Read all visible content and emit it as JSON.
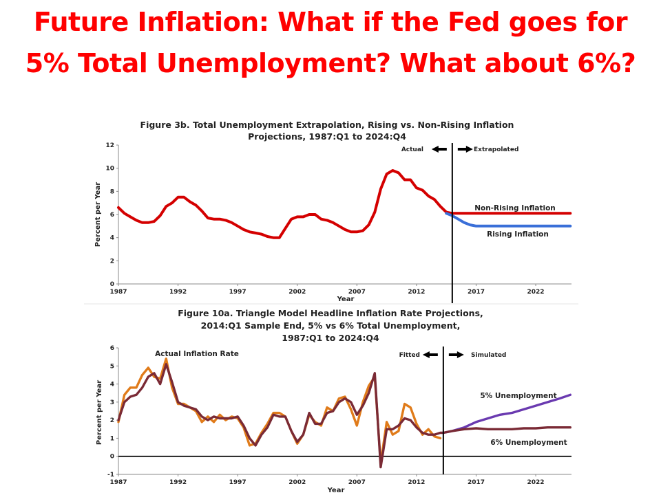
{
  "slide": {
    "title": "Future Inflation: What if the Fed goes for 5% Total Unemployment? What about 6%?"
  },
  "colors": {
    "title": "#ff0000",
    "red_series": "#d40000",
    "blue_series": "#3a6fd8",
    "orange_series": "#e07b1a",
    "maroon_series": "#7a2a35",
    "purple_series": "#6a3ab0"
  },
  "chart_data": [
    {
      "type": "line",
      "title": "Figure 3b. Total Unemployment Extrapolation, Rising vs. Non-Rising Inflation Projections, 1987:Q1 to 2024:Q4",
      "title_lines": [
        "Figure 3b. Total Unemployment Extrapolation, Rising vs. Non-Rising Inflation",
        "Projections, 1987:Q1 to 2024:Q4"
      ],
      "xlabel": "Year",
      "ylabel": "Percent per Year",
      "xlim": [
        1987,
        2025
      ],
      "ylim": [
        0,
        12
      ],
      "x_ticks": [
        "1987",
        "1992",
        "1997",
        "2002",
        "2007",
        "2012",
        "2017",
        "2022"
      ],
      "y_ticks": [
        "0",
        "2",
        "4",
        "6",
        "8",
        "10",
        "12"
      ],
      "divider_x": 2015.0,
      "annotations": {
        "left": "Actual",
        "right": "Extrapolated"
      },
      "series": [
        {
          "name": "Non-Rising Inflation",
          "color": "#d40000",
          "x": [
            1987.0,
            1987.5,
            1988.0,
            1988.5,
            1989.0,
            1989.5,
            1990.0,
            1990.5,
            1991.0,
            1991.5,
            1992.0,
            1992.5,
            1993.0,
            1993.5,
            1994.0,
            1994.5,
            1995.0,
            1995.5,
            1996.0,
            1996.5,
            1997.0,
            1997.5,
            1998.0,
            1998.5,
            1999.0,
            1999.5,
            2000.0,
            2000.5,
            2001.0,
            2001.5,
            2002.0,
            2002.5,
            2003.0,
            2003.5,
            2004.0,
            2004.5,
            2005.0,
            2005.5,
            2006.0,
            2006.5,
            2007.0,
            2007.5,
            2008.0,
            2008.5,
            2009.0,
            2009.5,
            2010.0,
            2010.5,
            2011.0,
            2011.5,
            2012.0,
            2012.5,
            2013.0,
            2013.5,
            2014.0,
            2014.5,
            2015.0,
            2016.0,
            2017.0,
            2018.0,
            2019.0,
            2020.0,
            2021.0,
            2022.0,
            2023.0,
            2024.0,
            2024.9
          ],
          "y": [
            6.6,
            6.1,
            5.8,
            5.5,
            5.3,
            5.3,
            5.4,
            5.9,
            6.7,
            7.0,
            7.5,
            7.5,
            7.1,
            6.8,
            6.3,
            5.7,
            5.6,
            5.6,
            5.5,
            5.3,
            5.0,
            4.7,
            4.5,
            4.4,
            4.3,
            4.1,
            4.0,
            4.0,
            4.8,
            5.6,
            5.8,
            5.8,
            6.0,
            6.0,
            5.6,
            5.5,
            5.3,
            5.0,
            4.7,
            4.5,
            4.5,
            4.6,
            5.1,
            6.2,
            8.2,
            9.5,
            9.8,
            9.6,
            9.0,
            9.0,
            8.3,
            8.1,
            7.6,
            7.3,
            6.7,
            6.2,
            6.1,
            6.1,
            6.1,
            6.1,
            6.1,
            6.1,
            6.1,
            6.1,
            6.1,
            6.1,
            6.1
          ]
        },
        {
          "name": "Rising Inflation",
          "color": "#3a6fd8",
          "x": [
            2014.5,
            2015.0,
            2015.5,
            2016.0,
            2016.5,
            2017.0,
            2018.0,
            2019.0,
            2020.0,
            2021.0,
            2022.0,
            2023.0,
            2024.0,
            2024.9
          ],
          "y": [
            6.1,
            5.9,
            5.6,
            5.3,
            5.1,
            5.0,
            5.0,
            5.0,
            5.0,
            5.0,
            5.0,
            5.0,
            5.0,
            5.0
          ]
        }
      ]
    },
    {
      "type": "line",
      "title": "Figure 10a. Triangle Model Headline Inflation Rate Projections, 2014:Q1 Sample End, 5% vs 6% Total Unemployment, 1987:Q1 to 2024:Q4",
      "title_lines": [
        "Figure 10a. Triangle Model Headline Inflation Rate Projections,",
        "2014:Q1 Sample End, 5% vs 6% Total Unemployment,",
        "1987:Q1 to 2024:Q4"
      ],
      "xlabel": "Year",
      "ylabel": "Percent per Year",
      "xlim": [
        1987,
        2025
      ],
      "ylim": [
        -1,
        6
      ],
      "x_ticks": [
        "1987",
        "1992",
        "1997",
        "2002",
        "2007",
        "2012",
        "2017",
        "2022"
      ],
      "y_ticks": [
        "-1",
        "0",
        "1",
        "2",
        "3",
        "4",
        "5",
        "6"
      ],
      "divider_x": 2014.25,
      "annotations": {
        "left": "Fitted",
        "right": "Simulated",
        "actual": "Actual Inflation Rate"
      },
      "series": [
        {
          "name": "Actual Inflation Rate",
          "color": "#e07b1a",
          "x": [
            1987.0,
            1987.5,
            1988.0,
            1988.5,
            1989.0,
            1989.5,
            1990.0,
            1990.5,
            1991.0,
            1991.5,
            1992.0,
            1992.5,
            1993.0,
            1993.5,
            1994.0,
            1994.5,
            1995.0,
            1995.5,
            1996.0,
            1996.5,
            1997.0,
            1997.5,
            1998.0,
            1998.5,
            1999.0,
            1999.5,
            2000.0,
            2000.5,
            2001.0,
            2001.5,
            2002.0,
            2002.5,
            2003.0,
            2003.5,
            2004.0,
            2004.5,
            2005.0,
            2005.5,
            2006.0,
            2006.5,
            2007.0,
            2007.5,
            2008.0,
            2008.5,
            2009.0,
            2009.5,
            2010.0,
            2010.5,
            2011.0,
            2011.5,
            2012.0,
            2012.5,
            2013.0,
            2013.5,
            2014.0
          ],
          "y": [
            1.9,
            3.4,
            3.8,
            3.8,
            4.5,
            4.9,
            4.4,
            4.3,
            5.4,
            3.8,
            2.9,
            2.9,
            2.7,
            2.5,
            1.9,
            2.2,
            1.9,
            2.3,
            2.0,
            2.2,
            2.1,
            1.6,
            0.6,
            0.7,
            1.3,
            1.8,
            2.4,
            2.4,
            2.2,
            1.4,
            0.7,
            1.2,
            2.3,
            1.9,
            1.7,
            2.7,
            2.5,
            3.2,
            3.3,
            2.6,
            1.7,
            3.0,
            3.9,
            4.4,
            -0.4,
            1.9,
            1.2,
            1.4,
            2.9,
            2.7,
            1.8,
            1.2,
            1.5,
            1.1,
            1.0
          ]
        },
        {
          "name": "Fitted",
          "color": "#7a2a35",
          "x": [
            1987.0,
            1987.5,
            1988.0,
            1988.5,
            1989.0,
            1989.5,
            1990.0,
            1990.5,
            1991.0,
            1991.5,
            1992.0,
            1992.5,
            1993.0,
            1993.5,
            1994.0,
            1994.5,
            1995.0,
            1995.5,
            1996.0,
            1996.5,
            1997.0,
            1997.5,
            1998.0,
            1998.5,
            1999.0,
            1999.5,
            2000.0,
            2000.5,
            2001.0,
            2001.5,
            2002.0,
            2002.5,
            2003.0,
            2003.5,
            2004.0,
            2004.5,
            2005.0,
            2005.5,
            2006.0,
            2006.5,
            2007.0,
            2007.5,
            2008.0,
            2008.5,
            2009.0,
            2009.5,
            2010.0,
            2010.5,
            2011.0,
            2011.5,
            2012.0,
            2012.5,
            2013.0,
            2013.5,
            2014.0,
            2014.25
          ],
          "y": [
            2.0,
            3.0,
            3.3,
            3.4,
            3.8,
            4.4,
            4.6,
            4.0,
            5.1,
            4.1,
            3.0,
            2.8,
            2.7,
            2.6,
            2.2,
            2.0,
            2.2,
            2.1,
            2.1,
            2.1,
            2.2,
            1.7,
            1.0,
            0.6,
            1.2,
            1.6,
            2.3,
            2.2,
            2.2,
            1.4,
            0.8,
            1.2,
            2.4,
            1.8,
            1.8,
            2.4,
            2.5,
            3.0,
            3.2,
            3.0,
            2.3,
            2.8,
            3.5,
            4.6,
            -0.6,
            1.5,
            1.5,
            1.7,
            2.1,
            2.0,
            1.6,
            1.3,
            1.2,
            1.2,
            1.3,
            1.3
          ]
        },
        {
          "name": "5% Unemployment",
          "color": "#6a3ab0",
          "x": [
            2014.25,
            2015.0,
            2016.0,
            2017.0,
            2018.0,
            2019.0,
            2020.0,
            2021.0,
            2022.0,
            2023.0,
            2024.0,
            2024.9
          ],
          "y": [
            1.3,
            1.4,
            1.6,
            1.9,
            2.1,
            2.3,
            2.4,
            2.6,
            2.8,
            3.0,
            3.2,
            3.4
          ]
        },
        {
          "name": "6% Unemployment",
          "color": "#7a2a35",
          "x": [
            2014.25,
            2015.0,
            2016.0,
            2017.0,
            2018.0,
            2019.0,
            2020.0,
            2021.0,
            2022.0,
            2023.0,
            2024.0,
            2024.9
          ],
          "y": [
            1.3,
            1.4,
            1.5,
            1.55,
            1.5,
            1.5,
            1.5,
            1.55,
            1.55,
            1.6,
            1.6,
            1.6
          ]
        }
      ]
    }
  ]
}
